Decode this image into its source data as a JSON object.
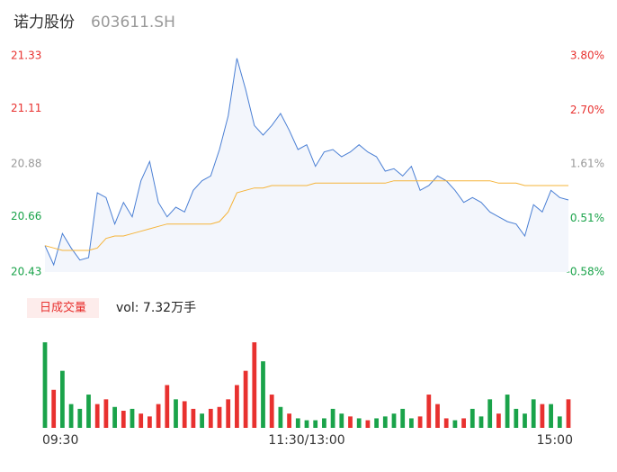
{
  "chart_data": {
    "type": "line",
    "title": "诺力股份",
    "subtitle": "603611.SH",
    "x": [
      0,
      4,
      8,
      12,
      16,
      20,
      24,
      28,
      32,
      36,
      40,
      44,
      48,
      52,
      56,
      60,
      64,
      68,
      72,
      76,
      80,
      84,
      88,
      92,
      96,
      100,
      104,
      108,
      112,
      116,
      120,
      124,
      128,
      132,
      136,
      140,
      144,
      148,
      152,
      156,
      160,
      164,
      168,
      172,
      176,
      180,
      184,
      188,
      192,
      196,
      200,
      204,
      208,
      212,
      216,
      220,
      224,
      228,
      232,
      236,
      240
    ],
    "xlim": [
      0,
      240
    ],
    "xticks": [
      {
        "value": 0,
        "label": "09:30"
      },
      {
        "value": 120,
        "label": "11:30/13:00"
      },
      {
        "value": 240,
        "label": "15:00"
      }
    ],
    "ylim": [
      20.43,
      21.33
    ],
    "yticks": [
      21.33,
      21.11,
      20.88,
      20.66,
      20.43
    ],
    "ytick_colors": [
      "#e8312f",
      "#e8312f",
      "#999999",
      "#1aa34a",
      "#1aa34a"
    ],
    "y2lim": [
      -0.58,
      3.8
    ],
    "y2ticks": [
      {
        "value": 3.8,
        "label": "3.80%"
      },
      {
        "value": 2.7,
        "label": "2.70%"
      },
      {
        "value": 1.61,
        "label": "1.61%"
      },
      {
        "value": 0.51,
        "label": "0.51%"
      },
      {
        "value": -0.58,
        "label": "-0.58%"
      }
    ],
    "series": [
      {
        "color": "#4a7fd4",
        "fill": "#f3f6fc",
        "values": [
          20.54,
          20.46,
          20.59,
          20.53,
          20.48,
          20.49,
          20.76,
          20.74,
          20.63,
          20.72,
          20.66,
          20.81,
          20.89,
          20.72,
          20.66,
          20.7,
          20.68,
          20.77,
          20.81,
          20.83,
          20.94,
          21.08,
          21.32,
          21.19,
          21.04,
          21.0,
          21.04,
          21.09,
          21.02,
          20.94,
          20.96,
          20.87,
          20.93,
          20.94,
          20.91,
          20.93,
          20.96,
          20.93,
          20.91,
          20.85,
          20.86,
          20.83,
          20.87,
          20.77,
          20.79,
          20.83,
          20.81,
          20.77,
          20.72,
          20.74,
          20.72,
          20.68,
          20.66,
          20.64,
          20.63,
          20.58,
          20.71,
          20.68,
          20.77,
          20.74,
          20.73
        ]
      },
      {
        "color": "#f5b43a",
        "values": [
          20.54,
          20.53,
          20.52,
          20.52,
          20.52,
          20.52,
          20.53,
          20.57,
          20.58,
          20.58,
          20.59,
          20.6,
          20.61,
          20.62,
          20.63,
          20.63,
          20.63,
          20.63,
          20.63,
          20.63,
          20.64,
          20.68,
          20.76,
          20.77,
          20.78,
          20.78,
          20.79,
          20.79,
          20.79,
          20.79,
          20.79,
          20.8,
          20.8,
          20.8,
          20.8,
          20.8,
          20.8,
          20.8,
          20.8,
          20.8,
          20.81,
          20.81,
          20.81,
          20.81,
          20.81,
          20.81,
          20.81,
          20.81,
          20.81,
          20.81,
          20.81,
          20.81,
          20.8,
          20.8,
          20.8,
          20.79,
          20.79,
          20.79,
          20.79,
          20.79,
          20.79
        ]
      }
    ],
    "volume": {
      "label": "日成交量",
      "summary": "vol: 7.32万手",
      "values": [
        90,
        40,
        60,
        25,
        20,
        35,
        25,
        30,
        22,
        18,
        20,
        15,
        12,
        25,
        45,
        30,
        28,
        20,
        15,
        20,
        22,
        30,
        45,
        60,
        90,
        70,
        35,
        22,
        15,
        10,
        8,
        8,
        10,
        20,
        15,
        12,
        10,
        8,
        10,
        12,
        15,
        20,
        10,
        12,
        35,
        25,
        10,
        8,
        10,
        20,
        12,
        30,
        15,
        35,
        20,
        15,
        30,
        25,
        25,
        12,
        30
      ],
      "colors": [
        "#1aa34a",
        "#e8312f",
        "#1aa34a",
        "#1aa34a",
        "#1aa34a",
        "#1aa34a",
        "#e8312f",
        "#e8312f",
        "#1aa34a",
        "#e8312f",
        "#1aa34a",
        "#e8312f",
        "#e8312f",
        "#e8312f",
        "#e8312f",
        "#1aa34a",
        "#e8312f",
        "#e8312f",
        "#1aa34a",
        "#e8312f",
        "#e8312f",
        "#e8312f",
        "#e8312f",
        "#e8312f",
        "#e8312f",
        "#1aa34a",
        "#e8312f",
        "#1aa34a",
        "#e8312f",
        "#1aa34a",
        "#1aa34a",
        "#1aa34a",
        "#1aa34a",
        "#1aa34a",
        "#1aa34a",
        "#e8312f",
        "#1aa34a",
        "#e8312f",
        "#1aa34a",
        "#1aa34a",
        "#1aa34a",
        "#1aa34a",
        "#1aa34a",
        "#e8312f",
        "#e8312f",
        "#e8312f",
        "#e8312f",
        "#1aa34a",
        "#e8312f",
        "#1aa34a",
        "#1aa34a",
        "#1aa34a",
        "#e8312f",
        "#1aa34a",
        "#1aa34a",
        "#1aa34a",
        "#1aa34a",
        "#e8312f",
        "#1aa34a",
        "#1aa34a",
        "#e8312f"
      ]
    }
  }
}
